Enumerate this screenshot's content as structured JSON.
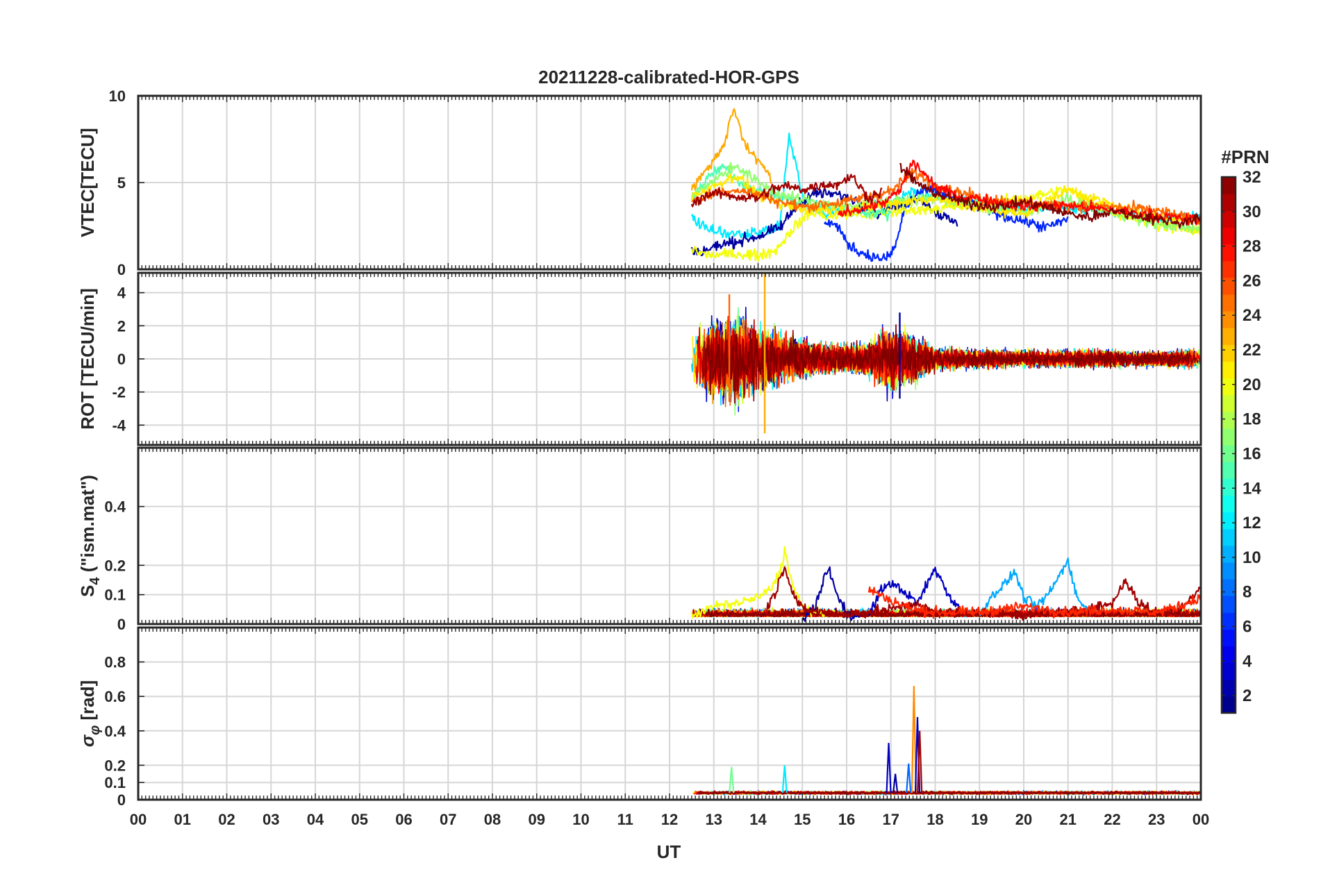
{
  "figure": {
    "title": "20211228-calibrated-HOR-GPS",
    "xlabel": "UT",
    "x_ticks": [
      "00",
      "01",
      "02",
      "03",
      "04",
      "05",
      "06",
      "07",
      "08",
      "09",
      "10",
      "11",
      "12",
      "13",
      "14",
      "15",
      "16",
      "17",
      "18",
      "19",
      "20",
      "21",
      "22",
      "23",
      "00"
    ],
    "colorbar": {
      "label": "#PRN",
      "range": [
        1,
        32
      ],
      "colormap": "jet",
      "tick_labels": [
        "2",
        "4",
        "6",
        "8",
        "10",
        "12",
        "14",
        "16",
        "18",
        "20",
        "22",
        "24",
        "26",
        "28",
        "30",
        "32"
      ]
    }
  },
  "chart_data": [
    {
      "type": "line",
      "name": "vtec",
      "ylabel": "VTEC[TECU]",
      "xlim": [
        0,
        24
      ],
      "ylim": [
        0,
        10
      ],
      "y_ticks": [
        "0",
        "5",
        "10"
      ],
      "grid": true,
      "data_window": [
        12.5,
        24
      ],
      "series_count": 32,
      "series": [
        {
          "prn": 23,
          "x": [
            12.5,
            12.75,
            13,
            13.25,
            13.45,
            13.7,
            14,
            14.3
          ],
          "y": [
            4.6,
            5.5,
            6.3,
            7.2,
            9.4,
            7.2,
            6.3,
            5.1
          ]
        },
        {
          "prn": 12,
          "x": [
            12.5,
            12.75,
            13,
            13.5,
            14,
            14.5,
            14.7,
            15,
            15.5,
            16,
            16.5,
            17,
            17.5,
            18,
            19,
            20,
            21,
            22,
            23,
            24
          ],
          "y": [
            3.0,
            2.5,
            2.2,
            2.0,
            2.1,
            2.6,
            7.8,
            4.2,
            3.2,
            3.4,
            3.6,
            3.8,
            4.5,
            4.2,
            3.8,
            3.5,
            3.6,
            3.3,
            3.0,
            3.1
          ]
        },
        {
          "prn": 2,
          "x": [
            12.5,
            12.75,
            13,
            13.5,
            14,
            14.5,
            14.9,
            15.3,
            15.8,
            16.2,
            16.7,
            17,
            17.3,
            17.6,
            18,
            18.5
          ],
          "y": [
            1.1,
            1.0,
            1.3,
            1.6,
            1.9,
            2.4,
            3.8,
            4.4,
            4.3,
            4.0,
            3.2,
            3.6,
            3.8,
            4.2,
            3.3,
            2.6
          ]
        },
        {
          "prn": 6,
          "x": [
            15.5,
            15.8,
            16,
            16.3,
            16.6,
            16.9,
            17.1,
            17.3,
            17.6,
            18,
            18.5,
            19,
            19.5,
            20,
            20.5,
            21
          ],
          "y": [
            2.8,
            2.5,
            1.5,
            1.0,
            0.7,
            0.6,
            1.3,
            3.4,
            4.4,
            4.6,
            3.9,
            3.6,
            3.1,
            2.8,
            2.4,
            2.9
          ]
        },
        {
          "prn": 20,
          "x": [
            12.5,
            12.75,
            13,
            13.5,
            14,
            14.4,
            14.8,
            15.2,
            15.6,
            16,
            16.5,
            17,
            18,
            19,
            20,
            21,
            22,
            23,
            24
          ],
          "y": [
            1.2,
            0.9,
            0.8,
            0.9,
            0.8,
            1.1,
            2.4,
            3.3,
            3.0,
            3.2,
            3.1,
            3.3,
            3.5,
            3.7,
            4.1,
            4.6,
            3.3,
            2.6,
            2.1
          ]
        },
        {
          "prn": 15,
          "x": [
            12.5,
            12.75,
            13,
            13.25,
            13.5,
            13.75,
            14,
            14.5,
            15,
            15.5,
            16,
            16.5,
            17
          ],
          "y": [
            4.1,
            4.9,
            5.6,
            5.9,
            5.2,
            4.8,
            4.5,
            4.2,
            3.7,
            3.5,
            3.4,
            3.3,
            3.2
          ]
        },
        {
          "prn": 17,
          "x": [
            12.5,
            13,
            13.5,
            14,
            14.5,
            15,
            16,
            17,
            18,
            19,
            20,
            21,
            22,
            23,
            24
          ],
          "y": [
            4.3,
            5.1,
            6.0,
            5.0,
            4.3,
            4.0,
            3.6,
            3.9,
            4.1,
            3.6,
            3.3,
            4.0,
            3.3,
            2.6,
            2.3
          ]
        },
        {
          "prn": 21,
          "x": [
            12.5,
            13,
            13.5,
            14,
            14.5,
            15,
            16,
            17,
            18,
            19,
            20,
            21,
            22,
            23,
            24
          ],
          "y": [
            4.2,
            4.8,
            5.4,
            4.3,
            3.7,
            3.5,
            3.4,
            3.8,
            4.1,
            3.5,
            3.2,
            4.6,
            3.7,
            3.0,
            2.8
          ]
        },
        {
          "prn": 25,
          "x": [
            12.5,
            13,
            13.5,
            14,
            14.5,
            15,
            16,
            17,
            17.5,
            18,
            19,
            20,
            21,
            22,
            23,
            24
          ],
          "y": [
            3.9,
            4.4,
            4.6,
            4.3,
            3.9,
            3.6,
            3.9,
            4.5,
            5.6,
            4.9,
            4.1,
            3.8,
            3.7,
            3.6,
            3.4,
            2.8
          ]
        },
        {
          "prn": 28,
          "x": [
            15.8,
            16.3,
            16.8,
            17.2,
            17.5,
            18,
            18.5,
            19,
            20,
            21,
            22,
            23,
            24
          ],
          "y": [
            3.2,
            3.5,
            3.8,
            4.5,
            6.2,
            4.8,
            4.2,
            4.1,
            3.6,
            3.7,
            3.4,
            3.1,
            2.8
          ]
        },
        {
          "prn": 31,
          "x": [
            12.5,
            12.75,
            13,
            13.5,
            14,
            14.3,
            14.6,
            15,
            15.5,
            15.8,
            16.1,
            16.5,
            16.8
          ],
          "y": [
            3.7,
            4.2,
            4.4,
            4.2,
            4.1,
            4.6,
            4.8,
            4.6,
            4.9,
            4.9,
            5.4,
            4.1,
            4.5
          ]
        },
        {
          "prn": 32,
          "x": [
            17.2,
            17.5,
            17.8,
            18.2,
            18.6,
            19,
            19.5,
            20,
            20.5,
            21,
            21.5,
            22,
            22.5,
            23,
            23.5,
            24
          ],
          "y": [
            5.9,
            5.2,
            4.6,
            4.2,
            3.9,
            3.7,
            3.6,
            3.9,
            3.6,
            3.2,
            3.0,
            3.4,
            3.1,
            2.9,
            2.7,
            2.9
          ]
        }
      ]
    },
    {
      "type": "line",
      "name": "rot",
      "ylabel": "ROT [TECU/min]",
      "xlim": [
        0,
        24
      ],
      "ylim": [
        -5.2,
        5.2
      ],
      "y_ticks": [
        "-4",
        "-2",
        "0",
        "2",
        "4"
      ],
      "grid": true,
      "data_window": [
        12.5,
        24
      ],
      "series_count": 32,
      "notable_extremes": [
        {
          "x": 14.15,
          "y_max": 5.2,
          "y_min": -4.5,
          "prn": 23
        },
        {
          "x": 13.35,
          "y_max": 3.9,
          "y_min": -2.6,
          "prn": 25
        },
        {
          "x": 17.2,
          "y_max": 2.8,
          "y_min": -2.4,
          "prn": 2
        }
      ],
      "envelope": {
        "x": [
          12.5,
          13,
          13.5,
          14,
          14.5,
          15,
          15.5,
          16,
          16.5,
          17,
          17.5,
          18,
          19,
          20,
          21,
          22,
          23,
          24
        ],
        "y_abs": [
          2.2,
          3.2,
          3.8,
          2.6,
          2.1,
          1.6,
          1.2,
          1.1,
          1.4,
          2.8,
          2.0,
          0.9,
          0.8,
          0.7,
          0.7,
          0.7,
          0.6,
          0.8
        ]
      }
    },
    {
      "type": "line",
      "name": "s4",
      "ylabel": "S_4 (\"ism.mat\")",
      "xlim": [
        0,
        24
      ],
      "ylim": [
        0,
        0.6
      ],
      "y_ticks": [
        "0",
        "0.1",
        "0.2",
        "0.4"
      ],
      "grid": true,
      "data_window": [
        12.5,
        24
      ],
      "series_count": 32,
      "series": [
        {
          "prn": 20,
          "x": [
            12.5,
            13,
            13.5,
            14,
            14.3,
            14.5,
            14.6,
            14.8,
            15,
            15.5
          ],
          "y": [
            0.03,
            0.06,
            0.07,
            0.09,
            0.12,
            0.18,
            0.25,
            0.12,
            0.06,
            0.03
          ]
        },
        {
          "prn": 2,
          "x": [
            15,
            15.3,
            15.5,
            15.6,
            15.8,
            16,
            16.3
          ],
          "y": [
            0.02,
            0.06,
            0.16,
            0.19,
            0.09,
            0.04,
            0.02
          ]
        },
        {
          "prn": 3,
          "x": [
            16.5,
            16.8,
            17,
            17.3,
            17.6,
            18,
            18.3,
            18.6
          ],
          "y": [
            0.03,
            0.12,
            0.14,
            0.11,
            0.07,
            0.19,
            0.1,
            0.04
          ]
        },
        {
          "prn": 10,
          "x": [
            19,
            19.3,
            19.6,
            19.8,
            20,
            20.3,
            20.6,
            21,
            21.2,
            21.5
          ],
          "y": [
            0.03,
            0.1,
            0.14,
            0.18,
            0.09,
            0.06,
            0.11,
            0.22,
            0.09,
            0.04
          ]
        },
        {
          "prn": 31,
          "x": [
            14.2,
            14.4,
            14.6,
            14.8,
            15,
            16,
            17,
            17.5,
            18,
            19,
            20,
            21,
            22,
            22.3,
            22.6,
            23,
            23.5,
            24
          ],
          "y": [
            0.06,
            0.11,
            0.2,
            0.1,
            0.05,
            0.03,
            0.05,
            0.07,
            0.04,
            0.04,
            0.03,
            0.04,
            0.07,
            0.15,
            0.07,
            0.04,
            0.05,
            0.12
          ]
        },
        {
          "prn": 27,
          "x": [
            16.5,
            17,
            17.5,
            18,
            19,
            20,
            21,
            22,
            23,
            23.5,
            24
          ],
          "y": [
            0.12,
            0.08,
            0.05,
            0.04,
            0.04,
            0.06,
            0.04,
            0.05,
            0.04,
            0.06,
            0.09
          ]
        }
      ]
    },
    {
      "type": "line",
      "name": "sigma_phi",
      "ylabel": "σ_φ [rad]",
      "xlim": [
        0,
        24
      ],
      "ylim": [
        0,
        1.0
      ],
      "y_ticks": [
        "0",
        "0.1",
        "0.2",
        "0.4",
        "0.6",
        "0.8"
      ],
      "grid": true,
      "data_window": [
        12.5,
        24
      ],
      "series_count": 32,
      "baseline": 0.04,
      "spikes": [
        {
          "x": 13.4,
          "y": 0.19,
          "prn": 16
        },
        {
          "x": 14.6,
          "y": 0.2,
          "prn": 12
        },
        {
          "x": 16.95,
          "y": 0.33,
          "prn": 3
        },
        {
          "x": 17.1,
          "y": 0.15,
          "prn": 2
        },
        {
          "x": 17.4,
          "y": 0.21,
          "prn": 8
        },
        {
          "x": 17.52,
          "y": 0.66,
          "prn": 24
        },
        {
          "x": 17.6,
          "y": 0.48,
          "prn": 3
        },
        {
          "x": 17.65,
          "y": 0.4,
          "prn": 31
        }
      ]
    }
  ]
}
